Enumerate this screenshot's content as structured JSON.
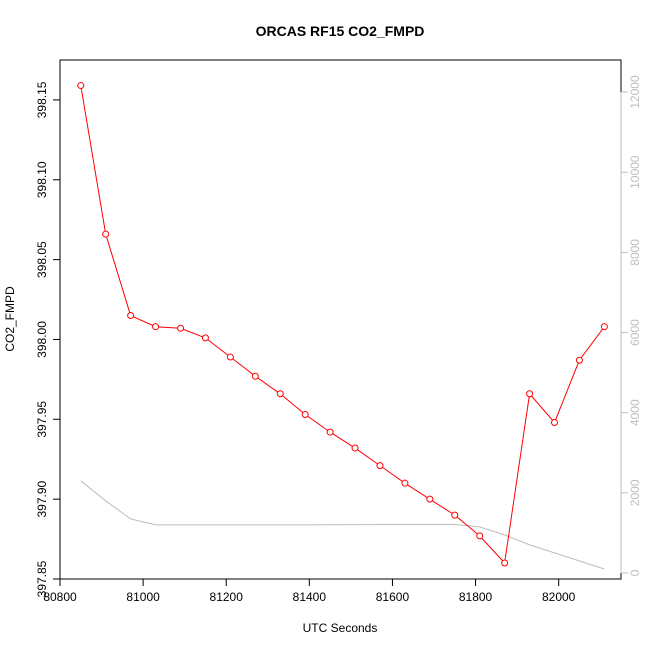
{
  "chart_data": {
    "type": "line",
    "title": "ORCAS RF15 CO2_FMPD",
    "xlabel": "UTC Seconds",
    "ylabel": "CO2_FMPD",
    "xlim": [
      80800,
      82150
    ],
    "ylim": [
      397.85,
      398.175
    ],
    "y2lim": [
      -150,
      12800
    ],
    "x_ticks": [
      80800,
      81000,
      81200,
      81400,
      81600,
      81800,
      82000
    ],
    "y_ticks": [
      397.85,
      397.9,
      397.95,
      398.0,
      398.05,
      398.1,
      398.15
    ],
    "y_tick_labels": [
      "397.85",
      "397.90",
      "397.95",
      "398.00",
      "398.05",
      "398.10",
      "398.15"
    ],
    "y2_ticks": [
      0,
      2000,
      4000,
      6000,
      8000,
      10000,
      12000
    ],
    "grid": false,
    "series": [
      {
        "axis": "left",
        "color": "#ff0000",
        "marker": "open-circle",
        "x": [
          80850,
          80910,
          80970,
          81030,
          81090,
          81150,
          81210,
          81270,
          81330,
          81390,
          81450,
          81510,
          81570,
          81630,
          81690,
          81750,
          81810,
          81870,
          81930,
          81990,
          82050,
          82110
        ],
        "y": [
          398.159,
          398.066,
          398.015,
          398.008,
          398.007,
          398.001,
          397.989,
          397.977,
          397.966,
          397.953,
          397.942,
          397.932,
          397.921,
          397.91,
          397.9,
          397.89,
          397.877,
          397.86,
          397.966,
          397.948,
          397.987,
          398.008
        ]
      },
      {
        "axis": "right",
        "color": "#bebebe",
        "marker": "none",
        "x": [
          80850,
          80910,
          80970,
          81030,
          81090,
          81200,
          81400,
          81600,
          81750,
          81810,
          81870,
          81930,
          81990,
          82050,
          82110
        ],
        "y": [
          2300,
          1800,
          1350,
          1200,
          1200,
          1200,
          1200,
          1210,
          1210,
          1150,
          950,
          700,
          500,
          300,
          100
        ]
      }
    ]
  }
}
